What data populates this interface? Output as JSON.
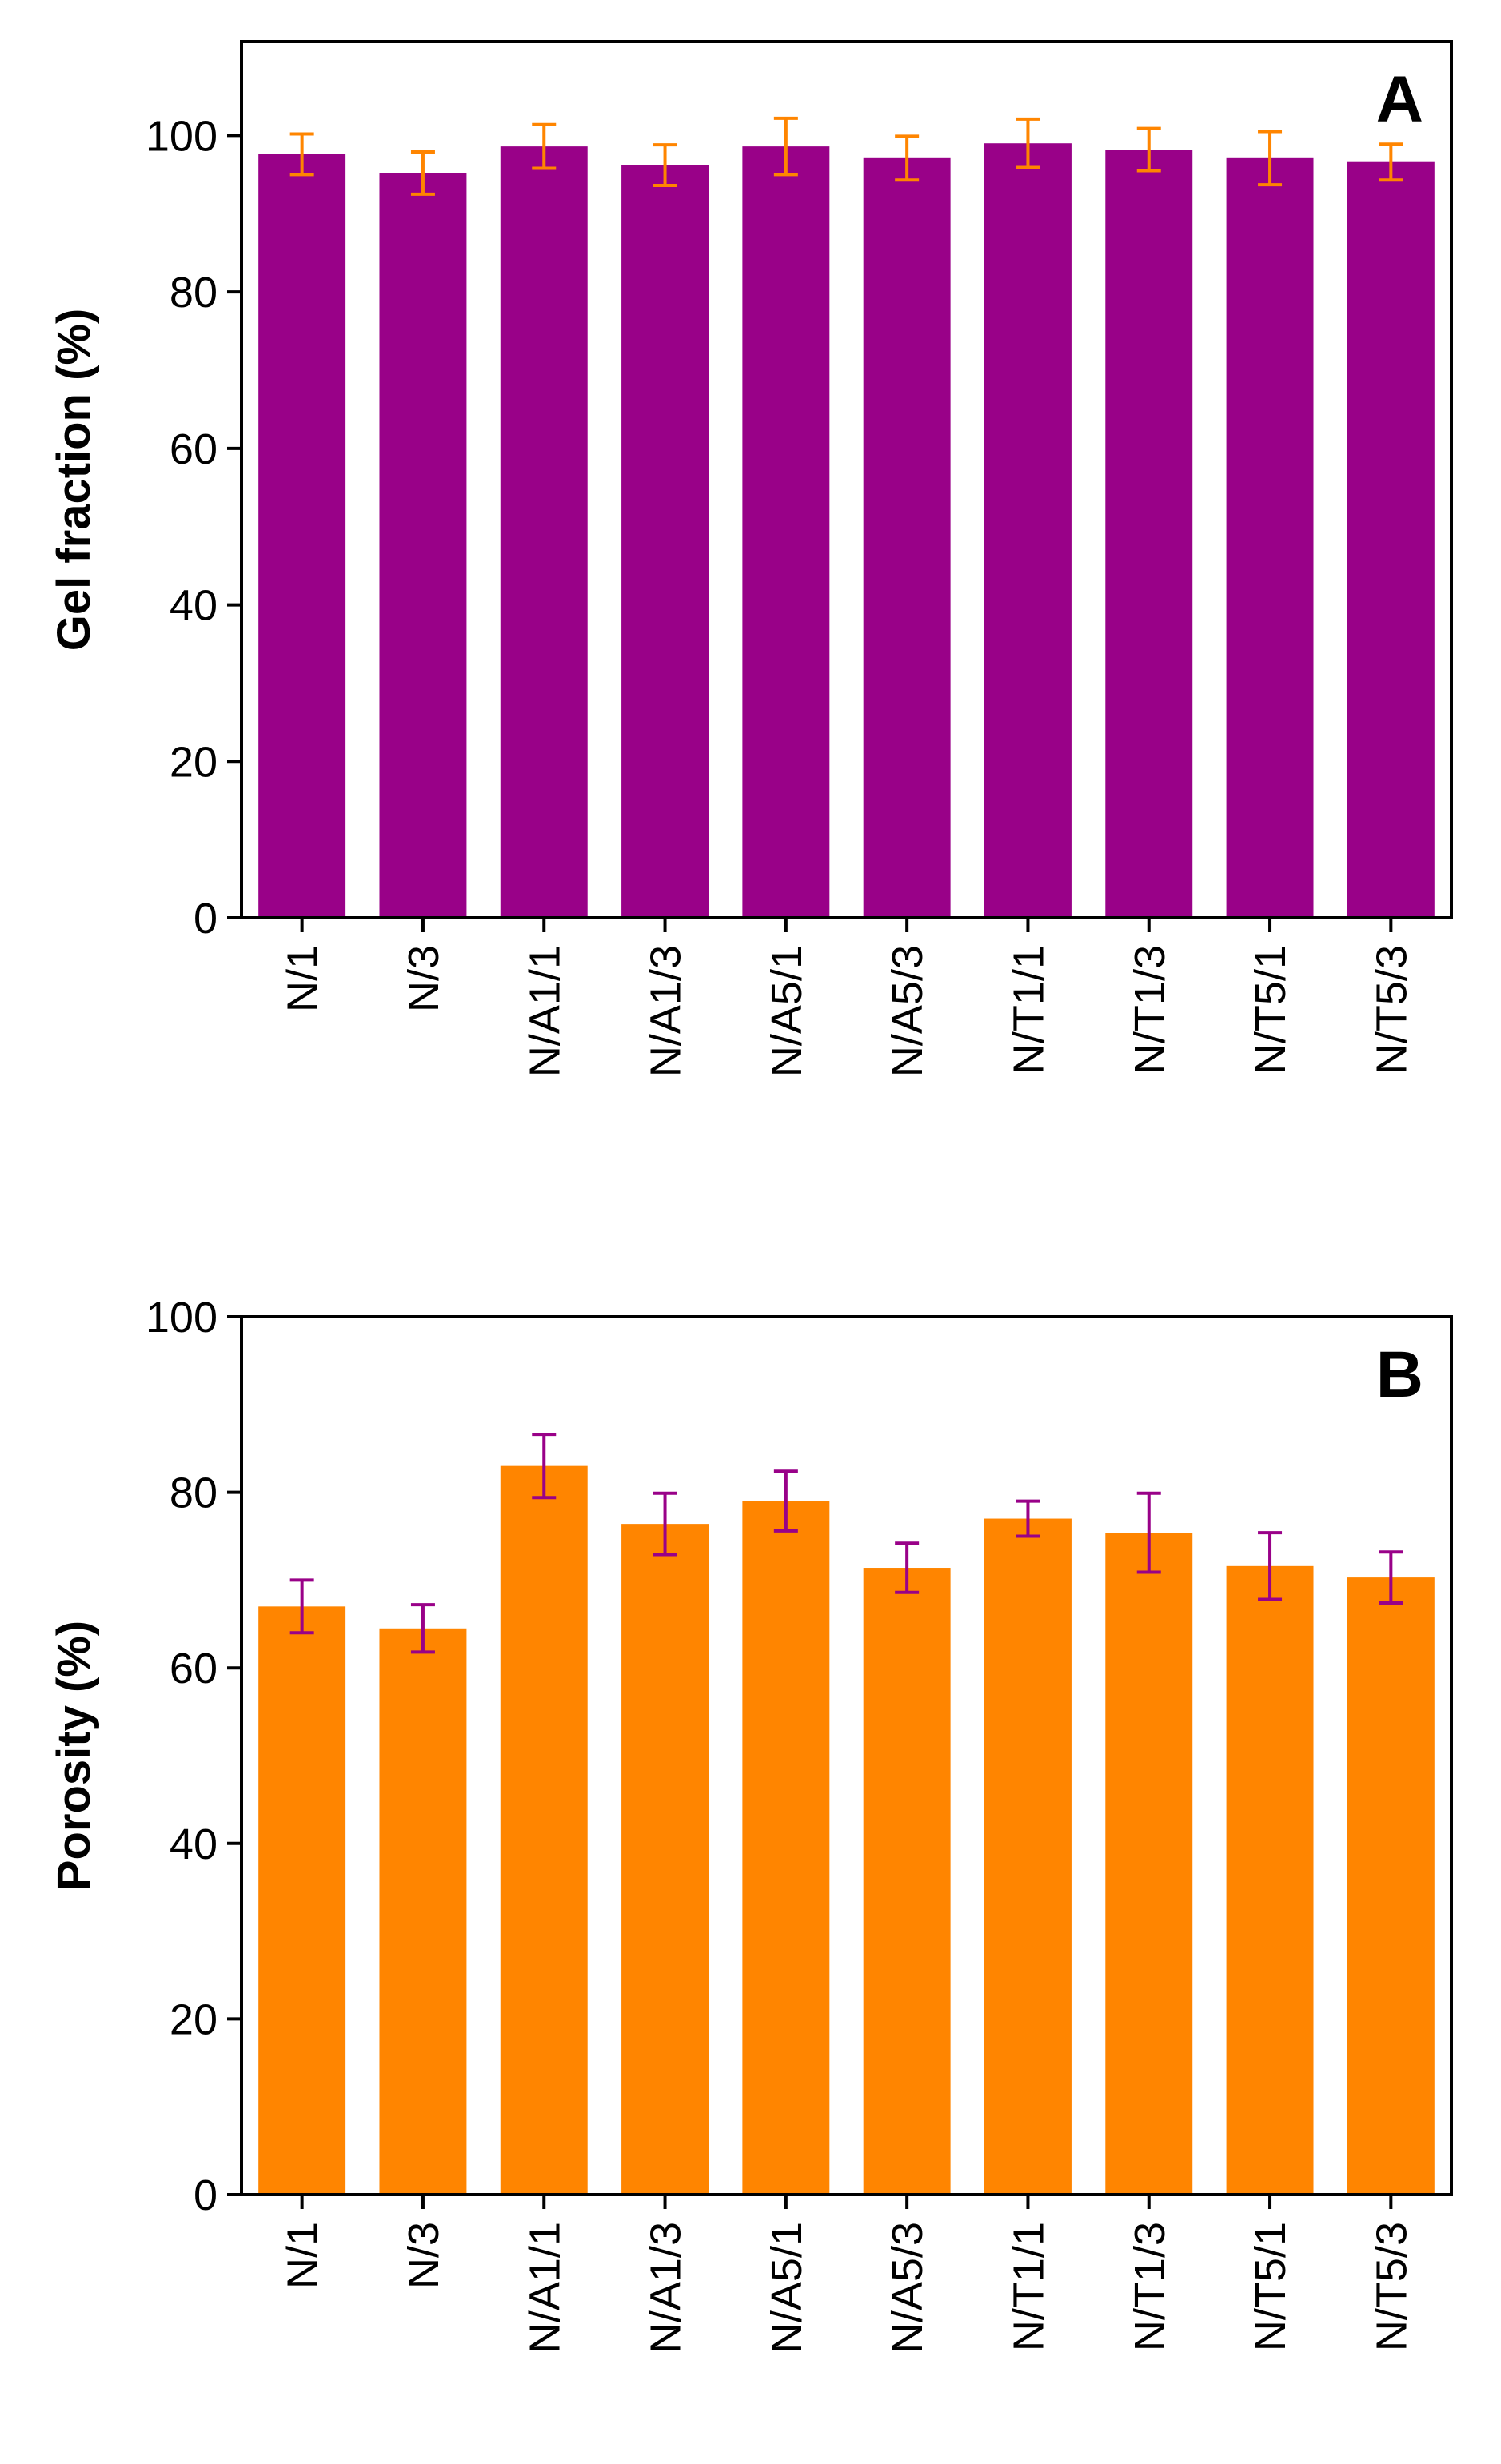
{
  "chart_data": [
    {
      "type": "bar",
      "panel_label": "A",
      "title": "",
      "xlabel": "",
      "ylabel": "Gel fraction (%)",
      "ylim": [
        0,
        112
      ],
      "yticks": [
        0,
        20,
        40,
        60,
        80,
        100
      ],
      "grid": false,
      "categories": [
        "N/1",
        "N/3",
        "N/A1/1",
        "N/A1/3",
        "N/A5/1",
        "N/A5/3",
        "N/T1/1",
        "N/T1/3",
        "N/T5/1",
        "N/T5/3"
      ],
      "values": [
        97.6,
        95.2,
        98.6,
        96.2,
        98.6,
        97.1,
        99.0,
        98.2,
        97.1,
        96.6
      ],
      "errors": [
        2.6,
        2.7,
        2.8,
        2.6,
        3.6,
        2.8,
        3.1,
        2.7,
        3.4,
        2.3
      ],
      "bar_color": "#990188",
      "error_color": "#FF8500"
    },
    {
      "type": "bar",
      "panel_label": "B",
      "title": "",
      "xlabel": "",
      "ylabel": "Porosity (%)",
      "ylim": [
        0,
        100
      ],
      "yticks": [
        0,
        20,
        40,
        60,
        80,
        100
      ],
      "grid": false,
      "categories": [
        "N/1",
        "N/3",
        "N/A1/1",
        "N/A1/3",
        "N/A5/1",
        "N/A5/3",
        "N/T1/1",
        "N/T1/3",
        "N/T5/1",
        "N/T5/3"
      ],
      "values": [
        67.0,
        64.5,
        83.0,
        76.4,
        79.0,
        71.4,
        77.0,
        75.4,
        71.6,
        70.3
      ],
      "errors": [
        3.0,
        2.7,
        3.6,
        3.5,
        3.4,
        2.8,
        2.0,
        4.5,
        3.8,
        2.9
      ],
      "bar_color": "#FF8500",
      "error_color": "#990188"
    }
  ]
}
